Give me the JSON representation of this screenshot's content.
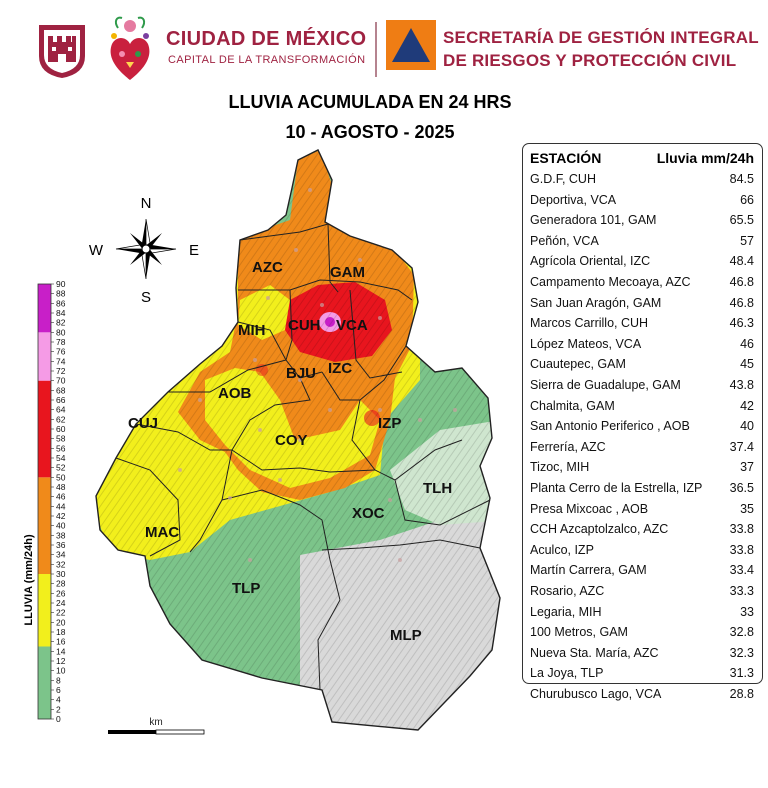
{
  "header": {
    "city_title": "CIUDAD DE MÉXICO",
    "city_subtitle": "CAPITAL DE LA TRANSFORMACIÓN",
    "agency_line1": "SECRETARÍA DE GESTIÓN INTEGRAL",
    "agency_line2": "DE RIESGOS Y PROTECCIÓN CIVIL",
    "brand_color": "#9f2241",
    "logos": [
      "city-shield-icon",
      "heart-logo-icon",
      "civil-protection-triangle-icon"
    ]
  },
  "map": {
    "title": "LLUVIA ACUMULADA EN 24 HRS",
    "date": "10 - AGOSTO - 2025",
    "compass": {
      "north": "N",
      "south": "S",
      "east": "E",
      "west": "W"
    },
    "districts": [
      "AZC",
      "GAM",
      "MIH",
      "CUH",
      "VCA",
      "BJU",
      "IZC",
      "AOB",
      "CUJ",
      "COY",
      "IZP",
      "TLH",
      "XOC",
      "MAC",
      "TLP",
      "MLP"
    ],
    "scale_bar": {
      "unit": "km",
      "start": "0",
      "end": "10"
    }
  },
  "legend": {
    "title": "LLUVIA (mm/24h)",
    "ticks": [
      "0",
      "2",
      "4",
      "6",
      "8",
      "10",
      "12",
      "14",
      "16",
      "18",
      "20",
      "22",
      "24",
      "26",
      "28",
      "30",
      "32",
      "34",
      "36",
      "38",
      "40",
      "42",
      "44",
      "46",
      "48",
      "50",
      "52",
      "54",
      "56",
      "58",
      "60",
      "62",
      "64",
      "66",
      "68",
      "70",
      "72",
      "74",
      "76",
      "78",
      "80",
      "82",
      "84",
      "86",
      "88",
      "90"
    ],
    "bands": [
      {
        "from": 0,
        "to": 15,
        "color": "#7cc48a"
      },
      {
        "from": 15,
        "to": 30,
        "color": "#f2ef1c"
      },
      {
        "from": 30,
        "to": 50,
        "color": "#f08a1a"
      },
      {
        "from": 50,
        "to": 70,
        "color": "#e8151e"
      },
      {
        "from": 70,
        "to": 80,
        "color": "#f59be6"
      },
      {
        "from": 80,
        "to": 90,
        "color": "#c81fc8"
      }
    ]
  },
  "table": {
    "header_station": "ESTACIÓN",
    "header_rain": "Lluvia mm/24h",
    "rows": [
      {
        "station": "G.D.F, CUH",
        "value": "84.5"
      },
      {
        "station": "Deportiva, VCA",
        "value": "66"
      },
      {
        "station": "Generadora 101, GAM",
        "value": "65.5"
      },
      {
        "station": "Peñón, VCA",
        "value": "57"
      },
      {
        "station": "Agrícola Oriental, IZC",
        "value": "48.4"
      },
      {
        "station": "Campamento Mecoaya, AZC",
        "value": "46.8"
      },
      {
        "station": "San Juan Aragón, GAM",
        "value": "46.8"
      },
      {
        "station": "Marcos Carrillo, CUH",
        "value": "46.3"
      },
      {
        "station": "López Mateos, VCA",
        "value": "46"
      },
      {
        "station": "Cuautepec, GAM",
        "value": "45"
      },
      {
        "station": "Sierra de Guadalupe, GAM",
        "value": "43.8"
      },
      {
        "station": "Chalmita, GAM",
        "value": "42"
      },
      {
        "station": "San Antonio Periferico  , AOB",
        "value": "40"
      },
      {
        "station": "Ferrería, AZC",
        "value": "37.4"
      },
      {
        "station": "Tizoc, MIH",
        "value": "37"
      },
      {
        "station": "Planta Cerro de la Estrella, IZP",
        "value": "36.5"
      },
      {
        "station": "Presa Mixcoac , AOB",
        "value": "35"
      },
      {
        "station": "CCH Azcaptolzalco, AZC",
        "value": "33.8"
      },
      {
        "station": "Aculco, IZP",
        "value": "33.8"
      },
      {
        "station": "Martín Carrera, GAM",
        "value": "33.4"
      },
      {
        "station": "Rosario, AZC",
        "value": "33.3"
      },
      {
        "station": "Legaria, MIH",
        "value": "33"
      },
      {
        "station": "100 Metros, GAM",
        "value": "32.8"
      },
      {
        "station": "Nueva Sta. María, AZC",
        "value": "32.3"
      },
      {
        "station": "La Joya, TLP",
        "value": "31.3"
      },
      {
        "station": "Churubusco Lago, VCA",
        "value": "28.8"
      }
    ]
  }
}
